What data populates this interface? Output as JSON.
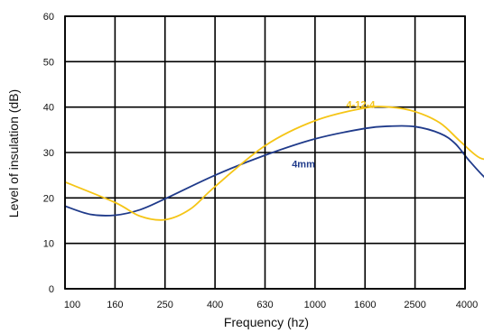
{
  "chart_data": {
    "type": "line",
    "xlabel": "Frequency (hz)",
    "ylabel": "Level of insulation (dB)",
    "categories": [
      "100",
      "160",
      "250",
      "400",
      "630",
      "1000",
      "1600",
      "2500",
      "4000"
    ],
    "ylim": [
      0,
      60
    ],
    "yticks": [
      0,
      10,
      20,
      30,
      40,
      50,
      60
    ],
    "grid": true,
    "series": [
      {
        "name": "4mm",
        "color": "#1f3a8a",
        "x": [
          0,
          0.5,
          1,
          1.5,
          2,
          3,
          4,
          5,
          6,
          6.5,
          7,
          7.5,
          7.8,
          8.1,
          8.5,
          8.7,
          9
        ],
        "values": [
          18.2,
          16.4,
          16.2,
          17.4,
          19.8,
          25.0,
          29.4,
          33.0,
          35.3,
          35.8,
          35.7,
          34.2,
          32.0,
          28.0,
          23.5,
          24.0,
          26.5
        ]
      },
      {
        "name": "4-12-4",
        "color": "#f5c516",
        "x": [
          0,
          1,
          1.5,
          2,
          2.5,
          3,
          4,
          5,
          6,
          6.5,
          7,
          7.5,
          7.9,
          8.3,
          8.6,
          8.8,
          9
        ],
        "values": [
          23.5,
          19.0,
          16.0,
          15.2,
          17.5,
          22.5,
          31.5,
          37.0,
          39.8,
          40.0,
          39.0,
          36.5,
          32.5,
          28.8,
          29.0,
          31.5,
          34.5
        ]
      }
    ]
  }
}
